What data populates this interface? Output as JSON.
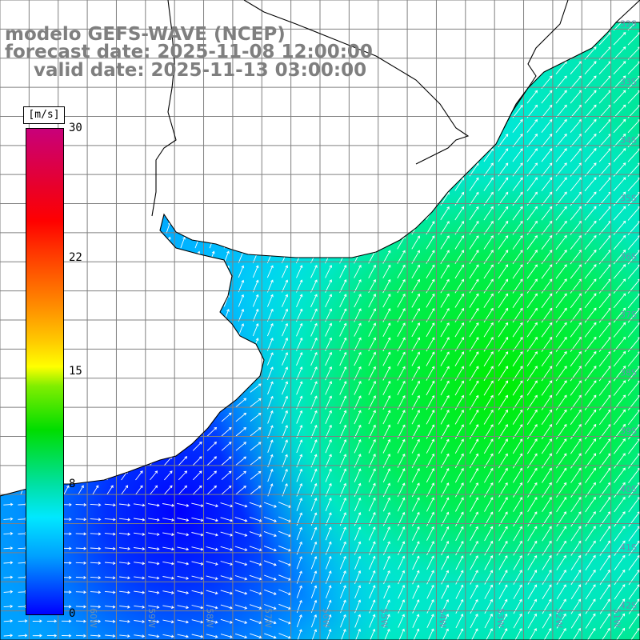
{
  "title": {
    "model": "modelo GEFS-WAVE (NCEP)",
    "forecast": "forecast date: 2025-11-08 12:00:00",
    "valid": "valid date: 2025-11-13 03:00:00"
  },
  "colorbar": {
    "unit": "[m/s]",
    "ticks": [
      "30",
      "22",
      "15",
      "8",
      "0"
    ],
    "tick_values": [
      30,
      22,
      15,
      8,
      0
    ],
    "range": [
      0,
      30
    ],
    "colors": [
      "#0000ff",
      "#00e8ff",
      "#00dd00",
      "#ffff00",
      "#ff8800",
      "#ff0000",
      "#c8007a"
    ]
  },
  "map": {
    "lat_labels": [
      "32S",
      "33S",
      "34S",
      "35S",
      "36S",
      "37S",
      "38S",
      "39S",
      "40S",
      "41S",
      "42S"
    ],
    "lon_labels": [
      "60W",
      "59W",
      "58W",
      "57W",
      "56W",
      "55W",
      "54W",
      "53W",
      "52W",
      "51W"
    ],
    "extent": {
      "lon": [
        -61.5,
        -50.5
      ],
      "lat": [
        -42.5,
        -31.5
      ]
    },
    "field": "wind speed and direction",
    "grid": true,
    "colors": {
      "ocean_low": "#0000ff",
      "ocean_mid": "#00e8ff",
      "ocean_high": "#00dd00",
      "land": "#ffffff",
      "coast": "#000000",
      "grid": "#808080",
      "arrow": "#ffffff"
    }
  }
}
